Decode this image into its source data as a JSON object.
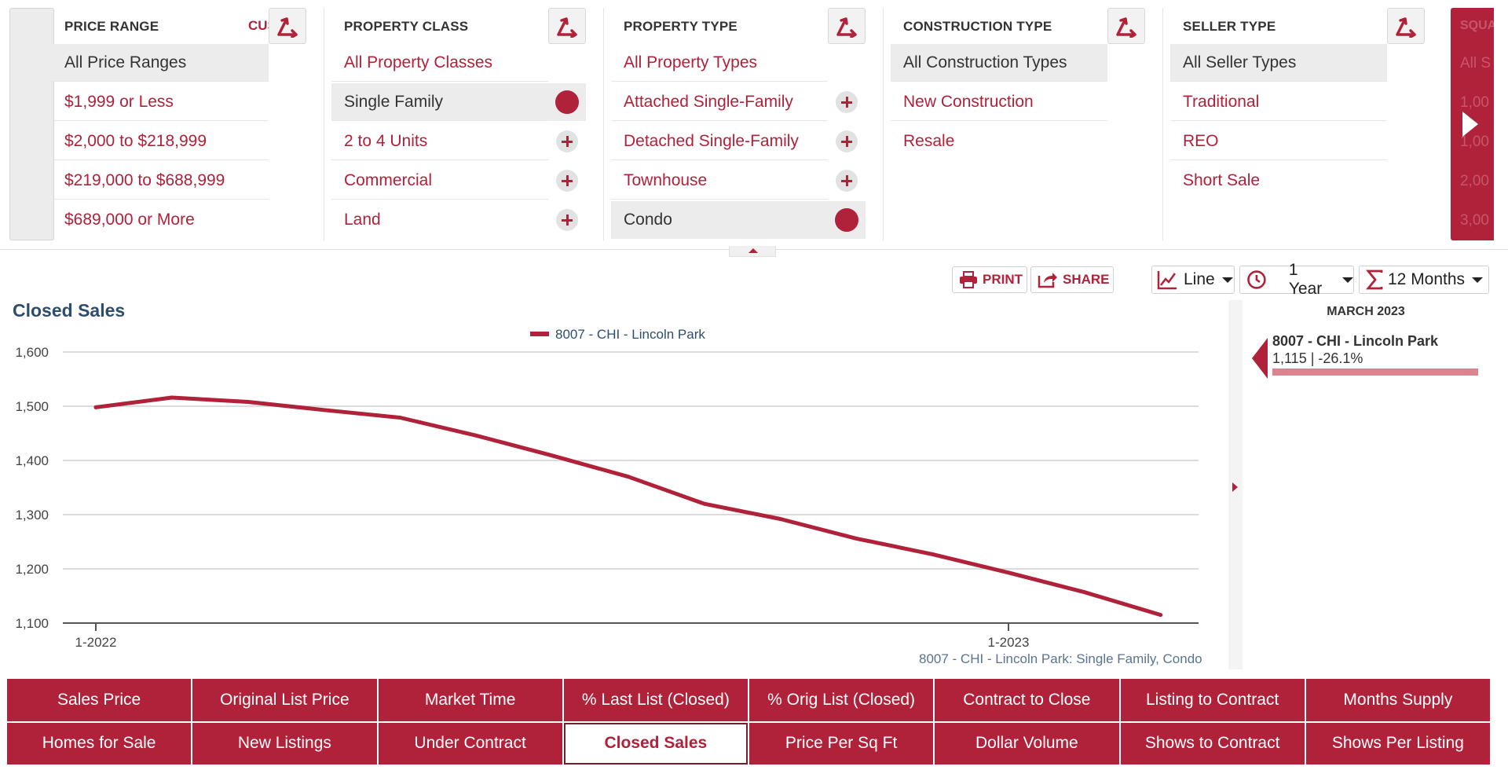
{
  "filters": {
    "price_range": {
      "title": "PRICE RANGE",
      "custom_label": "CUSTOM",
      "options": [
        "All Price Ranges",
        "$1,999 or Less",
        "$2,000 to $218,999",
        "$219,000 to $688,999",
        "$689,000 or More"
      ],
      "selected": "All Price Ranges"
    },
    "property_class": {
      "title": "PROPERTY CLASS",
      "options": [
        "All Property Classes",
        "Single Family",
        "2 to 4 Units",
        "Commercial",
        "Land"
      ],
      "selected": "Single Family"
    },
    "property_type": {
      "title": "PROPERTY TYPE",
      "options": [
        "All Property Types",
        "Attached Single-Family",
        "Detached Single-Family",
        "Townhouse",
        "Condo"
      ],
      "selected": "Condo"
    },
    "construction_type": {
      "title": "CONSTRUCTION TYPE",
      "options": [
        "All Construction Types",
        "New Construction",
        "Resale"
      ],
      "selected": "All Construction Types"
    },
    "seller_type": {
      "title": "SELLER TYPE",
      "options": [
        "All Seller Types",
        "Traditional",
        "REO",
        "Short Sale"
      ],
      "selected": "All Seller Types"
    },
    "partial_next_column": {
      "title_fragment": "SQUA",
      "options_fragments": [
        "All S",
        "1,00",
        "1,00",
        "2,00",
        "3,00"
      ]
    },
    "icons": {
      "sort": "sort-arrows-icon",
      "selected_marker": "selected-dot-icon",
      "add": "plus-circle-icon",
      "next": "chevron-right-icon",
      "collapse": "chevron-up-icon"
    }
  },
  "toolbar": {
    "print_label": "PRINT",
    "share_label": "SHARE",
    "chart_type": "Line",
    "period": "1 Year",
    "aggregation": "12 Months"
  },
  "chart": {
    "title": "Closed Sales",
    "legend_label": "8007 - CHI - Lincoln Park",
    "footer_label": "8007 - CHI - Lincoln Park: Single Family, Condo"
  },
  "chart_data": {
    "type": "line",
    "title": "Closed Sales",
    "xlabel": "",
    "ylabel": "",
    "x": [
      "1-2022",
      "2-2022",
      "3-2022",
      "4-2022",
      "5-2022",
      "6-2022",
      "7-2022",
      "8-2022",
      "9-2022",
      "10-2022",
      "11-2022",
      "12-2022",
      "1-2023",
      "2-2023",
      "3-2023"
    ],
    "x_tick_labels": [
      "1-2022",
      "1-2023"
    ],
    "series": [
      {
        "name": "8007 - CHI - Lincoln Park",
        "values": [
          1498,
          1516,
          1508,
          1493,
          1479,
          1446,
          1409,
          1370,
          1320,
          1292,
          1256,
          1227,
          1193,
          1157,
          1115
        ]
      }
    ],
    "ylim": [
      1100,
      1600
    ],
    "y_ticks": [
      1100,
      1200,
      1300,
      1400,
      1500,
      1600
    ],
    "y_tick_labels": [
      "1,100",
      "1,200",
      "1,300",
      "1,400",
      "1,500",
      "1,600"
    ],
    "grid": true,
    "legend": "top-center",
    "color": "#b0223a"
  },
  "side_panel": {
    "month": "MARCH 2023",
    "series_name": "8007 - CHI - Lincoln Park",
    "value_text": "1,115 | -26.1%"
  },
  "metrics": {
    "row1": [
      "Sales Price",
      "Original List Price",
      "Market Time",
      "% Last List (Closed)",
      "% Orig List (Closed)",
      "Contract to Close",
      "Listing to Contract",
      "Months Supply"
    ],
    "row2": [
      "Homes for Sale",
      "New Listings",
      "Under Contract",
      "Closed Sales",
      "Price Per Sq Ft",
      "Dollar Volume",
      "Shows to Contract",
      "Shows Per Listing"
    ],
    "active": "Closed Sales"
  },
  "colors": {
    "accent": "#b0223a",
    "title_blue": "#2e4d6b",
    "selected_bg": "#ececec"
  }
}
